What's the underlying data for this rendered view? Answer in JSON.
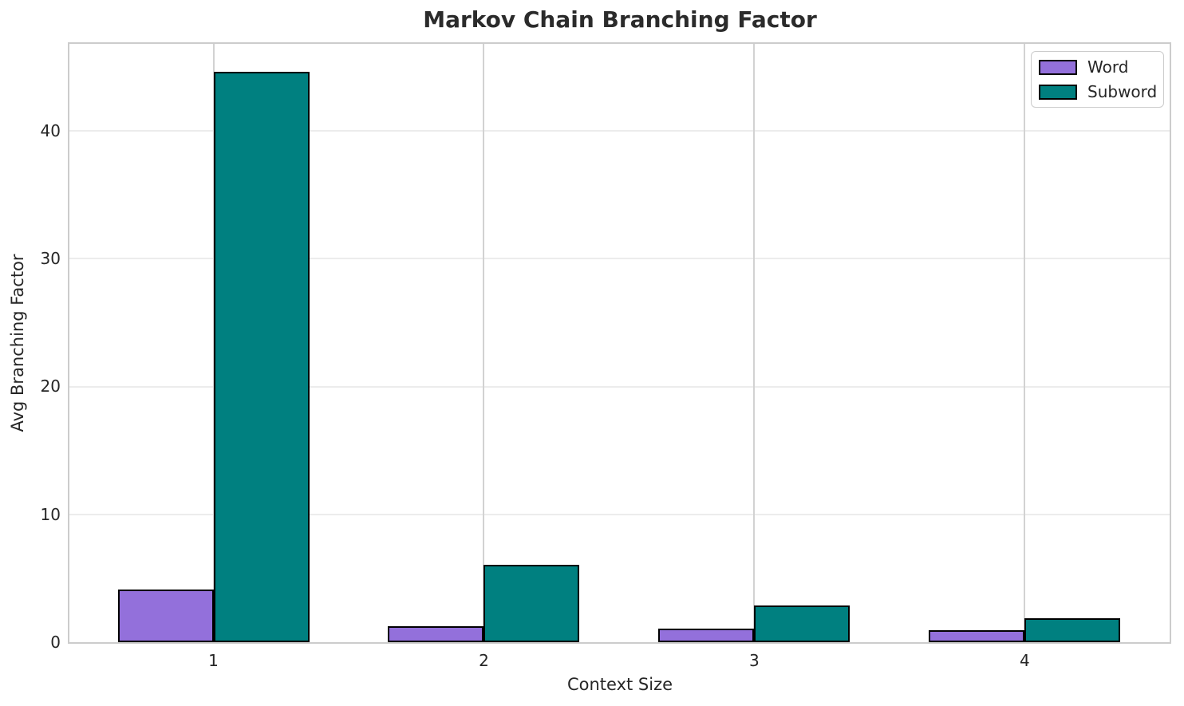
{
  "chart_data": {
    "type": "bar",
    "title": "Markov Chain Branching Factor",
    "xlabel": "Context Size",
    "ylabel": "Avg Branching Factor",
    "categories": [
      "1",
      "2",
      "3",
      "4"
    ],
    "series": [
      {
        "name": "Word",
        "color": "#9370DB",
        "values": [
          4.1,
          1.25,
          1.05,
          0.95
        ]
      },
      {
        "name": "Subword",
        "color": "#008080",
        "values": [
          44.6,
          6.05,
          2.9,
          1.9
        ]
      }
    ],
    "ylim": [
      0,
      46.8
    ],
    "yticks": [
      0,
      10,
      20,
      30,
      40
    ],
    "bar_edge_color": "#000000",
    "grid": true,
    "legend_position": "upper right",
    "colors": {
      "background": "#ffffff",
      "title_text": "#2b2b2b",
      "tick_text": "#262626",
      "grid_horizontal": "#ececec",
      "grid_vertical": "#d2d2d2",
      "spine": "#cccccc"
    }
  }
}
